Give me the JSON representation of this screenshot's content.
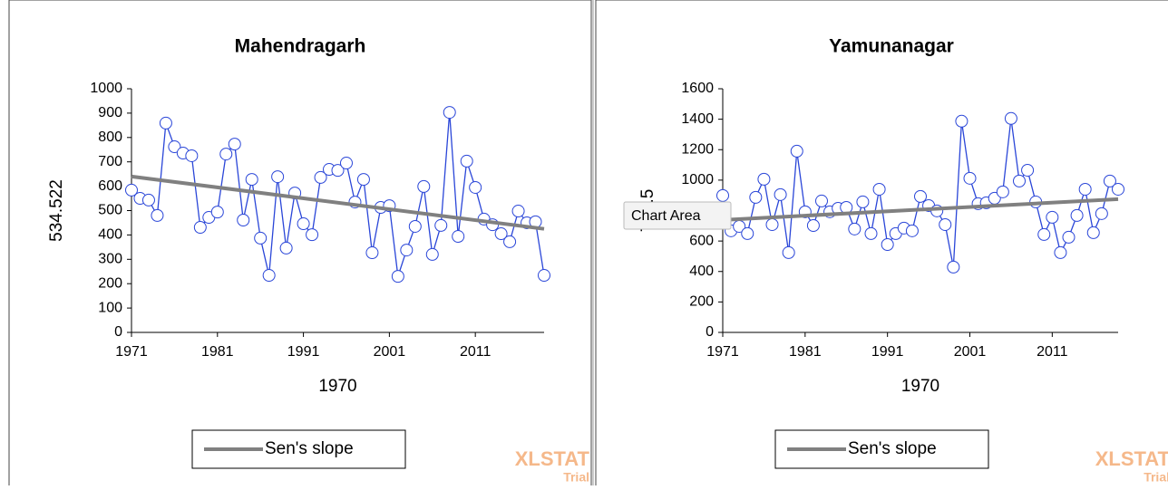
{
  "chart_data": [
    {
      "type": "line",
      "title": "Mahendragarh",
      "x_label": "1970",
      "y_label": "534.522",
      "x": [
        1971,
        1972,
        1973,
        1974,
        1975,
        1976,
        1977,
        1978,
        1979,
        1980,
        1981,
        1982,
        1983,
        1984,
        1985,
        1986,
        1987,
        1988,
        1989,
        1990,
        1991,
        1992,
        1993,
        1994,
        1995,
        1996,
        1997,
        1998,
        1999,
        2000,
        2001,
        2002,
        2003,
        2004,
        2005,
        2006,
        2007,
        2008,
        2009,
        2010,
        2011,
        2012,
        2013,
        2014,
        2015,
        2016,
        2017,
        2018,
        2019
      ],
      "xlim": [
        1971,
        2019
      ],
      "xticks": [
        1971,
        1981,
        1991,
        2001,
        2011
      ],
      "ylim": [
        0,
        1000
      ],
      "yticks": [
        0,
        100,
        200,
        300,
        400,
        500,
        600,
        700,
        800,
        900,
        1000
      ],
      "legend": "bottom",
      "series": [
        {
          "color": "#2a46d8",
          "values": [
            584,
            550,
            543,
            480,
            859,
            762,
            736,
            725,
            431,
            472,
            494,
            732,
            773,
            461,
            628,
            387,
            234,
            639,
            346,
            572,
            446,
            401,
            636,
            669,
            665,
            695,
            535,
            628,
            327,
            513,
            520,
            230,
            338,
            435,
            599,
            320,
            439,
            903,
            394,
            703,
            595,
            465,
            442,
            405,
            372,
            498,
            450,
            454,
            234
          ]
        },
        {
          "name": "Sen's slope",
          "color": "#808080",
          "x": [
            1971,
            2019
          ],
          "values": [
            640,
            425
          ]
        }
      ]
    },
    {
      "type": "line",
      "title": "Yamunanagar",
      "x_label": "1970",
      "y_label": "765.5",
      "x": [
        1971,
        1972,
        1973,
        1974,
        1975,
        1976,
        1977,
        1978,
        1979,
        1980,
        1981,
        1982,
        1983,
        1984,
        1985,
        1986,
        1987,
        1988,
        1989,
        1990,
        1991,
        1992,
        1993,
        1994,
        1995,
        1996,
        1997,
        1998,
        1999,
        2000,
        2001,
        2002,
        2003,
        2004,
        2005,
        2006,
        2007,
        2008,
        2009,
        2010,
        2011,
        2012,
        2013,
        2014,
        2015,
        2016,
        2017,
        2018,
        2019
      ],
      "xlim": [
        1971,
        2019
      ],
      "xticks": [
        1971,
        1981,
        1991,
        2001,
        2011
      ],
      "ylim": [
        0,
        1600
      ],
      "yticks": [
        0,
        200,
        400,
        600,
        800,
        1000,
        1200,
        1400,
        1600
      ],
      "legend": "bottom",
      "tooltip": "Chart Area",
      "series": [
        {
          "color": "#2a46d8",
          "values": [
            899,
            667,
            696,
            649,
            887,
            1006,
            708,
            905,
            524,
            1190,
            792,
            702,
            863,
            792,
            815,
            821,
            679,
            857,
            649,
            940,
            577,
            649,
            685,
            667,
            893,
            833,
            798,
            708,
            429,
            1387,
            1012,
            845,
            851,
            881,
            923,
            1405,
            994,
            1065,
            857,
            643,
            756,
            524,
            625,
            768,
            940,
            655,
            780,
            994,
            940
          ]
        },
        {
          "name": "Sen's slope",
          "color": "#808080",
          "x": [
            1971,
            2019
          ],
          "values": [
            738,
            875
          ]
        }
      ]
    }
  ],
  "watermark": {
    "brand": "XLSTAT",
    "note": "Trial"
  }
}
